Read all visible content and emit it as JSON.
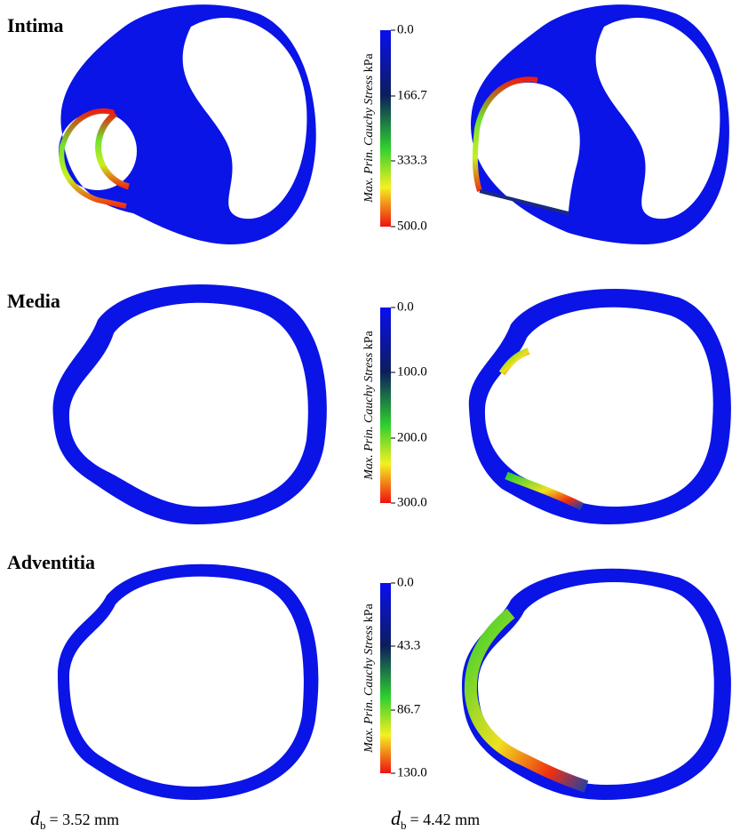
{
  "rows": [
    {
      "label": "Intima",
      "colorbar": {
        "title": "Max. Prin. Cauchy Stress",
        "unit": "kPa",
        "ticks": [
          "0.0",
          "166.7",
          "333.3",
          "500.0"
        ]
      }
    },
    {
      "label": "Media",
      "colorbar": {
        "title": "Max. Prin. Cauchy Stress",
        "unit": "kPa",
        "ticks": [
          "0.0",
          "100.0",
          "200.0",
          "300.0"
        ]
      }
    },
    {
      "label": "Adventitia",
      "colorbar": {
        "title": "Max. Prin. Cauchy Stress",
        "unit": "kPa",
        "ticks": [
          "0.0",
          "43.3",
          "86.7",
          "130.0"
        ]
      }
    }
  ],
  "captions": [
    {
      "symbol": "d",
      "subscript": "b",
      "text": "= 3.52 mm"
    },
    {
      "symbol": "d",
      "subscript": "b",
      "text": "= 4.42 mm"
    }
  ]
}
